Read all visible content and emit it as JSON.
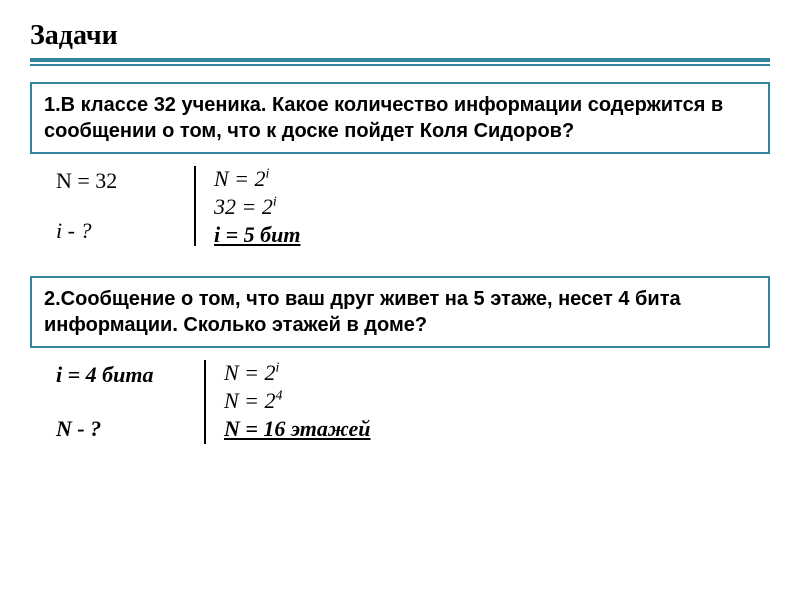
{
  "title": "Задачи",
  "colors": {
    "accent": "#31859c",
    "text": "#000000",
    "background": "#ffffff"
  },
  "problem1": {
    "text": "1.В классе 32 ученика. Какое количество информации содержится в сообщении о том, что к доске пойдет Коля Сидоров?",
    "given1": "N = 32",
    "given2": "i - ?",
    "sol1_plain": "N = 2",
    "sol1_sup": "i",
    "sol2_plain": "32 = 2",
    "sol2_sup": "i",
    "sol3": "i = 5 бит"
  },
  "problem2": {
    "text": "2.Сообщение о том, что ваш друг живет на 5 этаже, несет 4 бита информации. Сколько этажей в доме?",
    "given1": "i = 4 бита",
    "given2": "N - ?",
    "sol1_plain": "N = 2",
    "sol1_sup": "i",
    "sol2_plain": "N = 2",
    "sol2_sup": "4",
    "sol3": "N = 16 этажей"
  }
}
